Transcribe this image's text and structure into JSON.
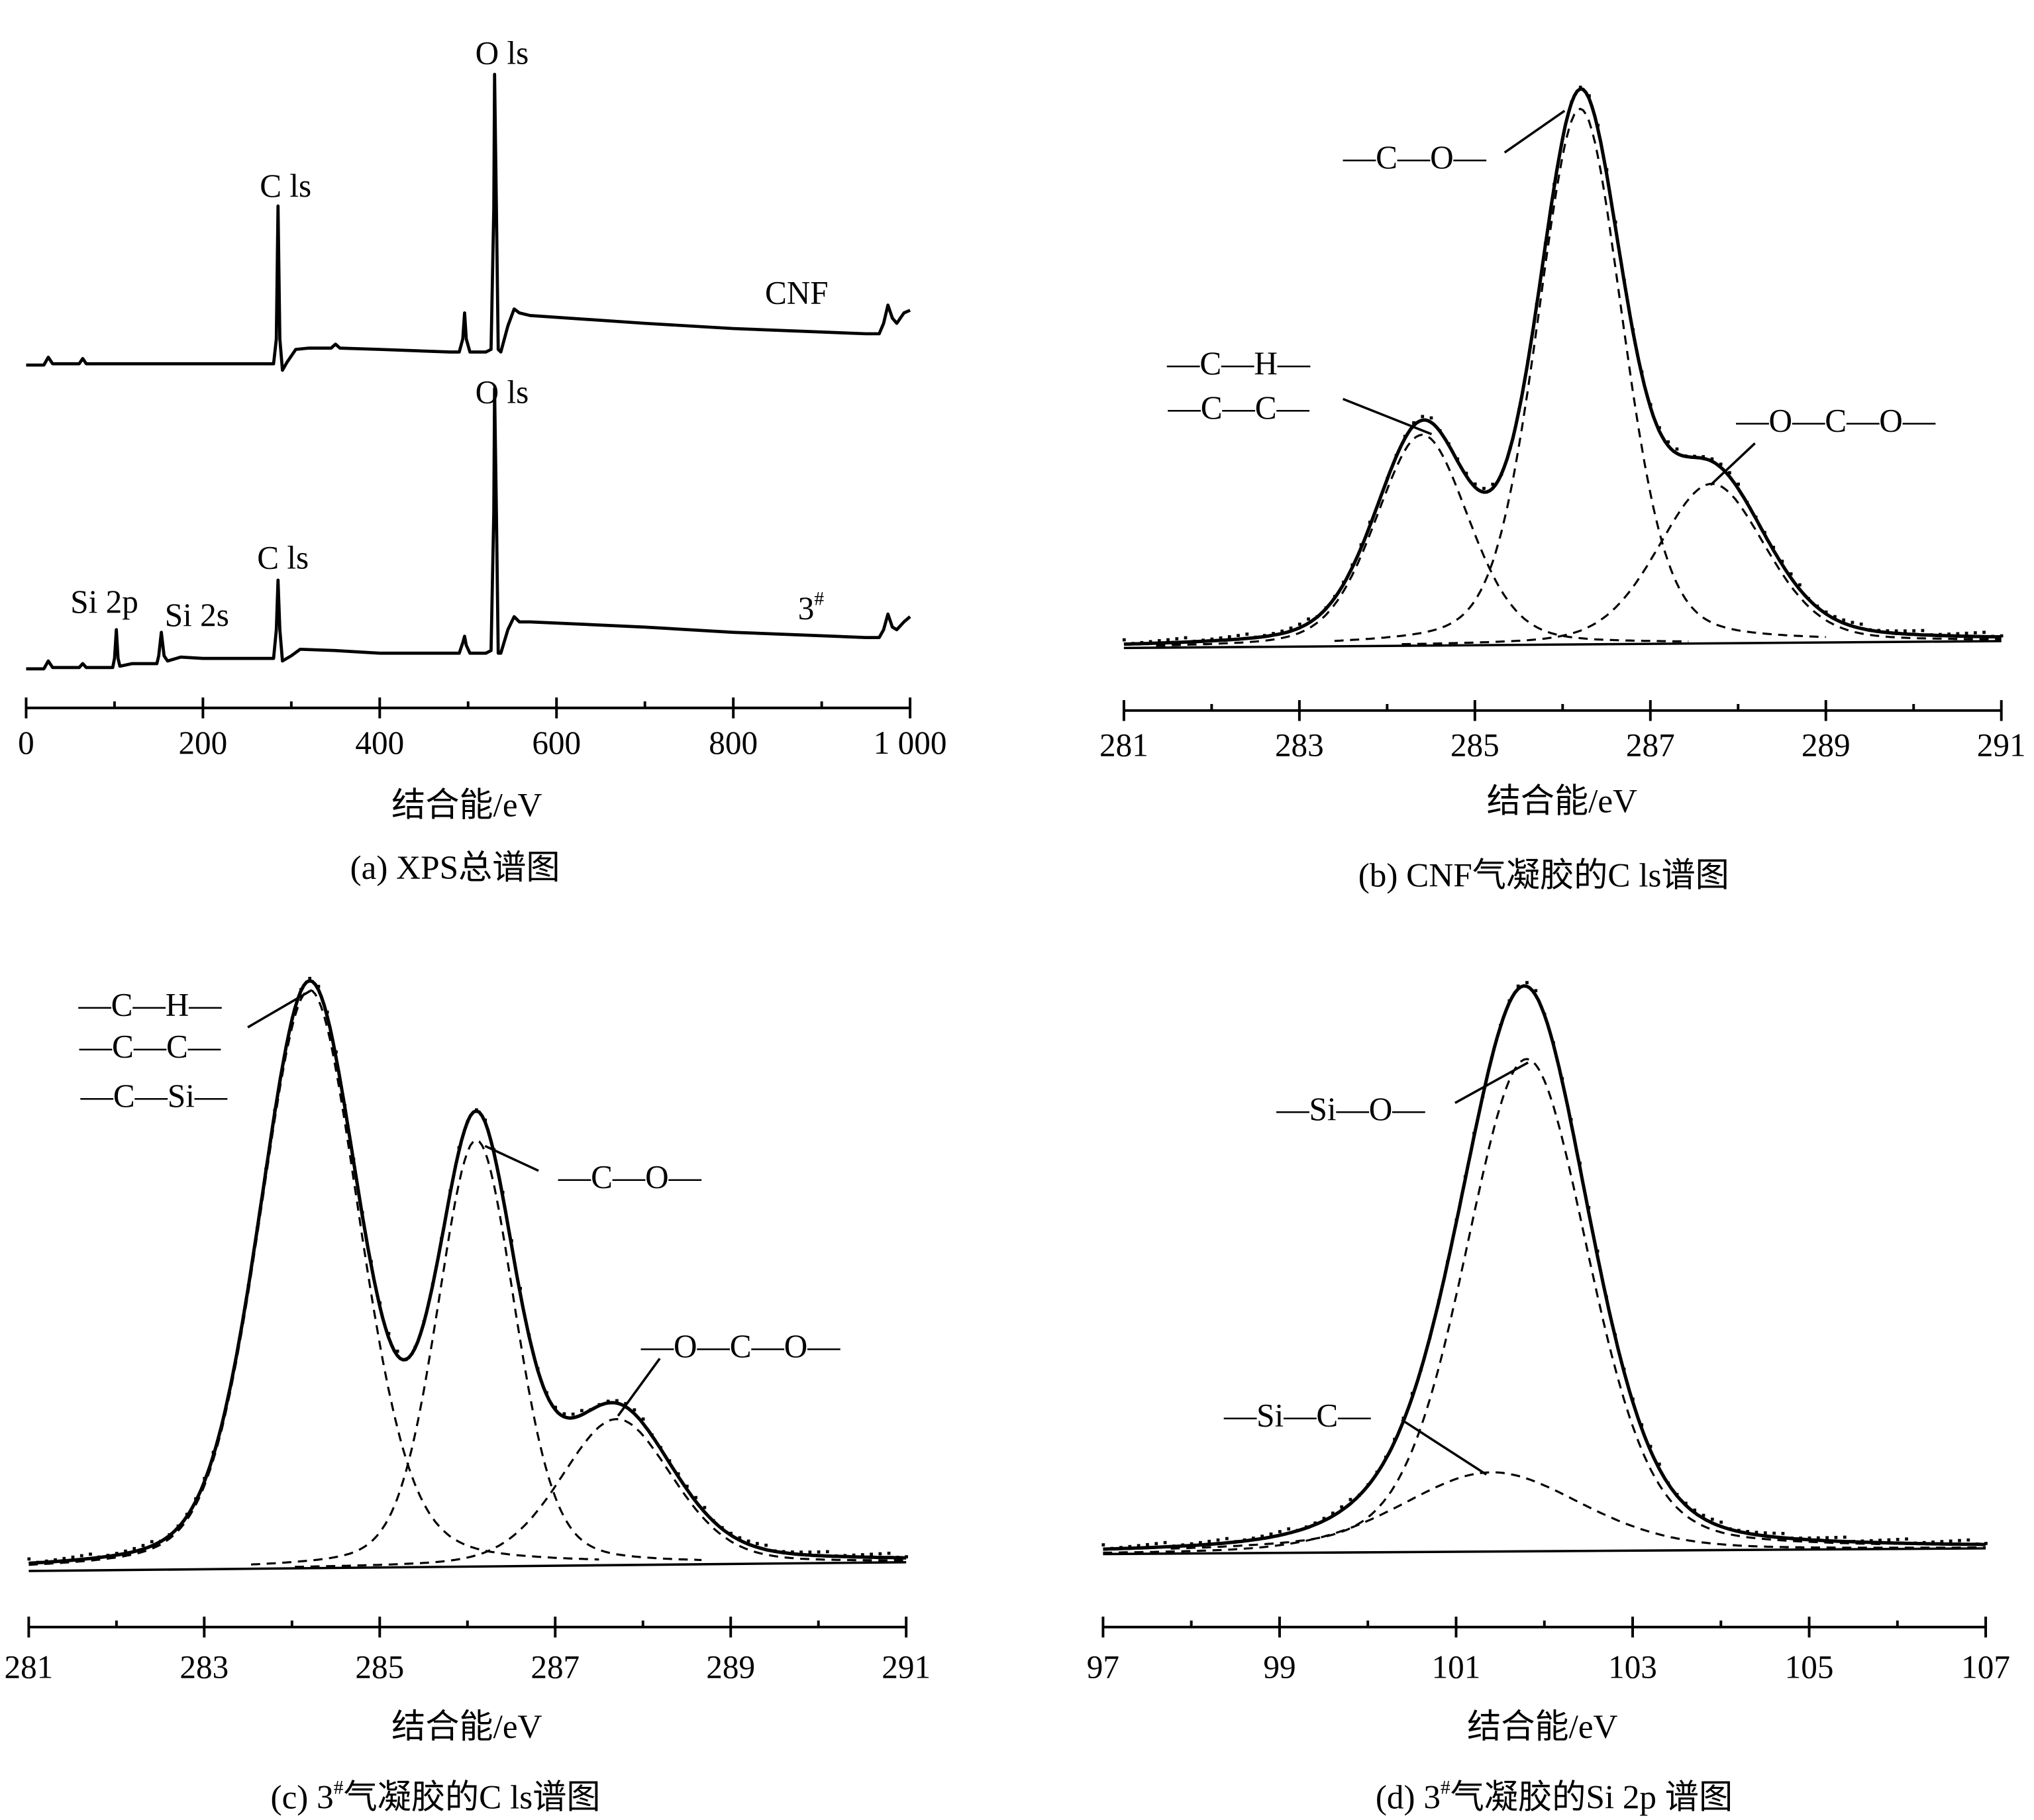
{
  "chart_data": [
    {
      "type": "line",
      "title": "(a) XPS总谱图",
      "caption_prefix": "(a) XPS总谱图",
      "xlabel": "结合能/eV",
      "ylabel": "",
      "xlim": [
        0,
        1000
      ],
      "ticks": [
        0,
        200,
        400,
        600,
        800,
        1000
      ],
      "tick_labels": [
        "0",
        "200",
        "400",
        "600",
        "800",
        "1 000"
      ],
      "minor_ticks": [
        100,
        300,
        500,
        700,
        900
      ],
      "series": [
        {
          "name": "CNF",
          "label": "CNF",
          "points": [
            [
              0,
              0
            ],
            [
              20,
              0
            ],
            [
              25,
              6
            ],
            [
              30,
              1
            ],
            [
              60,
              1
            ],
            [
              64,
              5
            ],
            [
              68,
              1
            ],
            [
              150,
              1
            ],
            [
              280,
              1
            ],
            [
              283,
              20
            ],
            [
              285,
              122
            ],
            [
              287,
              20
            ],
            [
              290,
              -4
            ],
            [
              295,
              2
            ],
            [
              305,
              12
            ],
            [
              320,
              13
            ],
            [
              345,
              13
            ],
            [
              350,
              16
            ],
            [
              355,
              13
            ],
            [
              400,
              12
            ],
            [
              480,
              10
            ],
            [
              490,
              10
            ],
            [
              494,
              20
            ],
            [
              496,
              40
            ],
            [
              498,
              20
            ],
            [
              502,
              10
            ],
            [
              520,
              10
            ],
            [
              526,
              12
            ],
            [
              529,
              120
            ],
            [
              530,
              223
            ],
            [
              532,
              120
            ],
            [
              534,
              12
            ],
            [
              537,
              10
            ],
            [
              545,
              30
            ],
            [
              552,
              43
            ],
            [
              558,
              40
            ],
            [
              570,
              38
            ],
            [
              700,
              32
            ],
            [
              800,
              28
            ],
            [
              950,
              24
            ],
            [
              965,
              24
            ],
            [
              970,
              32
            ],
            [
              975,
              46
            ],
            [
              980,
              36
            ],
            [
              985,
              32
            ],
            [
              993,
              40
            ],
            [
              1000,
              42
            ]
          ]
        },
        {
          "name": "3#",
          "label_main": "3",
          "label_sup": "#",
          "points": [
            [
              0,
              0
            ],
            [
              20,
              0
            ],
            [
              25,
              6
            ],
            [
              30,
              1
            ],
            [
              60,
              1
            ],
            [
              64,
              4
            ],
            [
              68,
              1
            ],
            [
              98,
              1
            ],
            [
              100,
              8
            ],
            [
              102,
              30
            ],
            [
              104,
              8
            ],
            [
              106,
              2
            ],
            [
              120,
              4
            ],
            [
              148,
              4
            ],
            [
              150,
              10
            ],
            [
              153,
              28
            ],
            [
              156,
              10
            ],
            [
              160,
              6
            ],
            [
              175,
              9
            ],
            [
              200,
              8
            ],
            [
              270,
              8
            ],
            [
              280,
              8
            ],
            [
              283,
              30
            ],
            [
              285,
              68
            ],
            [
              287,
              30
            ],
            [
              290,
              6
            ],
            [
              300,
              10
            ],
            [
              310,
              15
            ],
            [
              350,
              14
            ],
            [
              400,
              12
            ],
            [
              480,
              12
            ],
            [
              490,
              12
            ],
            [
              494,
              20
            ],
            [
              496,
              25
            ],
            [
              498,
              18
            ],
            [
              502,
              12
            ],
            [
              520,
              12
            ],
            [
              526,
              14
            ],
            [
              529,
              120
            ],
            [
              530,
              215
            ],
            [
              532,
              120
            ],
            [
              534,
              12
            ],
            [
              537,
              12
            ],
            [
              545,
              30
            ],
            [
              552,
              40
            ],
            [
              558,
              36
            ],
            [
              570,
              36
            ],
            [
              700,
              32
            ],
            [
              800,
              28
            ],
            [
              950,
              24
            ],
            [
              965,
              24
            ],
            [
              970,
              30
            ],
            [
              975,
              42
            ],
            [
              980,
              32
            ],
            [
              985,
              30
            ],
            [
              993,
              36
            ],
            [
              1000,
              40
            ]
          ]
        }
      ],
      "annotations": [
        {
          "text": "O ls"
        },
        {
          "text": "C ls"
        },
        {
          "text": "O ls"
        },
        {
          "text": "C ls"
        },
        {
          "text": "Si 2p"
        },
        {
          "text": "Si 2s"
        }
      ]
    },
    {
      "type": "line",
      "title": "(b) CNF气凝胶的C ls谱图",
      "xlabel": "结合能/eV",
      "xlim": [
        281,
        291
      ],
      "ylim": [
        0,
        100
      ],
      "ticks": [
        281,
        283,
        285,
        287,
        289,
        291
      ],
      "tick_labels": [
        "281",
        "283",
        "285",
        "287",
        "289",
        "291"
      ],
      "minor_ticks": [
        282,
        284,
        286,
        288,
        290
      ],
      "background": [
        0,
        1.2
      ],
      "components": [
        {
          "name": "—C—H— / —C—C—",
          "center": 284.4,
          "fwhm": 1.25,
          "height": 37
        },
        {
          "name": "—C—O—",
          "center": 286.2,
          "fwhm": 1.15,
          "height": 94
        },
        {
          "name": "—O—C—O—",
          "center": 287.7,
          "fwhm": 1.45,
          "height": 28
        }
      ],
      "annotations": [
        {
          "text": "—C—O—"
        },
        {
          "text": "—C—H—"
        },
        {
          "text": "—C—C—"
        },
        {
          "text": "—O—C—O—"
        }
      ]
    },
    {
      "type": "line",
      "title": "(c) 3#气凝胶的C ls谱图",
      "caption_prefix": "(c) 3",
      "caption_sup": "#",
      "caption_rest": "气凝胶的C ls谱图",
      "xlabel": "结合能/eV",
      "xlim": [
        281,
        291
      ],
      "ylim": [
        0,
        100
      ],
      "ticks": [
        281,
        283,
        285,
        287,
        289,
        291
      ],
      "tick_labels": [
        "281",
        "283",
        "285",
        "287",
        "289",
        "291"
      ],
      "minor_ticks": [
        282,
        284,
        286,
        288,
        290
      ],
      "background": [
        0,
        1.5
      ],
      "components": [
        {
          "name": "—C—H— / —C—C— / —C—Si—",
          "center": 284.2,
          "fwhm": 1.35,
          "height": 99
        },
        {
          "name": "—C—O—",
          "center": 286.1,
          "fwhm": 1.05,
          "height": 73
        },
        {
          "name": "—O—C—O—",
          "center": 287.7,
          "fwhm": 1.5,
          "height": 25
        }
      ],
      "annotations": [
        {
          "text": "—C—H—"
        },
        {
          "text": "—C—C—"
        },
        {
          "text": "—C—Si—"
        },
        {
          "text": "—C—O—"
        },
        {
          "text": "—O—C—O—"
        }
      ]
    },
    {
      "type": "line",
      "title": "(d) 3#气凝胶的Si 2p 谱图",
      "caption_prefix": "(d) 3",
      "caption_sup": "#",
      "caption_rest": "气凝胶的Si 2p 谱图",
      "xlabel": "结合能/eV",
      "xlim": [
        97,
        107
      ],
      "ylim": [
        0,
        100
      ],
      "ticks": [
        97,
        99,
        101,
        103,
        105,
        107
      ],
      "tick_labels": [
        "97",
        "99",
        "101",
        "103",
        "105",
        "107"
      ],
      "minor_ticks": [
        98,
        100,
        102,
        104,
        106
      ],
      "background": [
        0,
        1
      ],
      "components": [
        {
          "name": "—Si—O—",
          "center": 101.8,
          "fwhm": 1.65,
          "height": 87
        },
        {
          "name": "—Si—C—",
          "center": 101.4,
          "fwhm": 2.4,
          "height": 14
        }
      ],
      "annotations": [
        {
          "text": "—Si—O—"
        },
        {
          "text": "—Si—C—"
        }
      ]
    }
  ]
}
